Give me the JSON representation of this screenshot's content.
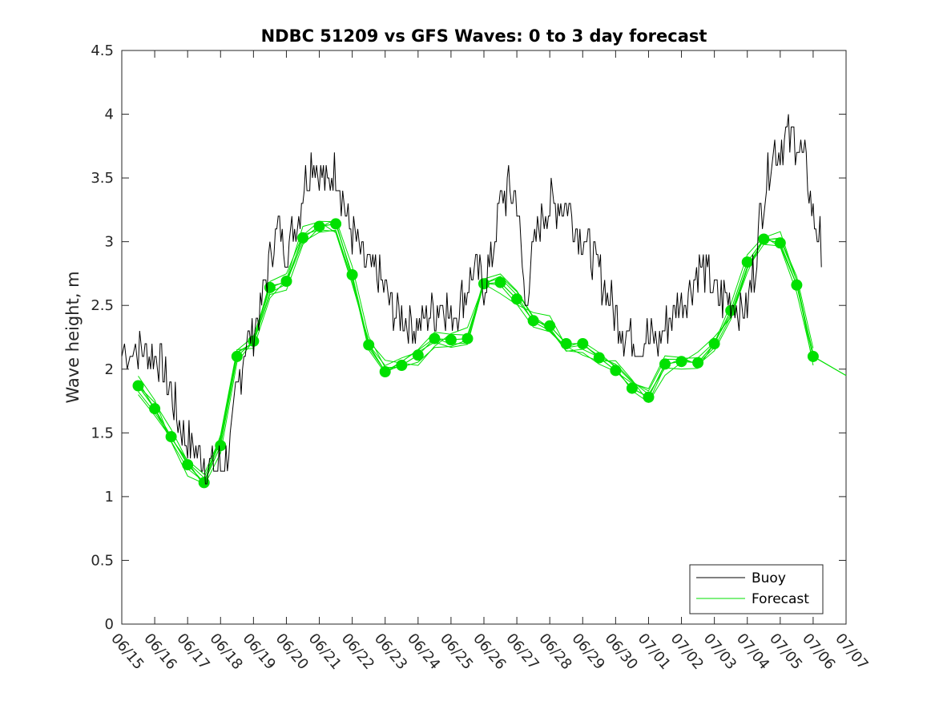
{
  "chart_data": {
    "type": "line",
    "title": "NDBC 51209 vs GFS Waves: 0 to 3 day forecast",
    "xlabel": "",
    "ylabel": "Wave height, m",
    "ylim": [
      0,
      4.5
    ],
    "yticks": [
      "0",
      "0.5",
      "1",
      "1.5",
      "2",
      "2.5",
      "3",
      "3.5",
      "4",
      "4.5"
    ],
    "xticks": [
      "06/15",
      "06/16",
      "06/17",
      "06/18",
      "06/19",
      "06/20",
      "06/21",
      "06/22",
      "06/23",
      "06/24",
      "06/25",
      "06/26",
      "06/27",
      "06/28",
      "06/29",
      "06/30",
      "07/01",
      "07/02",
      "07/03",
      "07/04",
      "07/05",
      "07/06",
      "07/07"
    ],
    "xlim_days": [
      0,
      22
    ],
    "legend": {
      "placement": "bottom-right",
      "entries": [
        "Buoy",
        "Forecast"
      ]
    },
    "colors": {
      "buoy": "#000000",
      "forecast": "#00e000",
      "axes": "#262626"
    },
    "series": [
      {
        "name": "Buoy",
        "x_days": [
          0,
          0.5,
          0.75,
          1,
          1.25,
          1.5,
          1.75,
          2,
          2.25,
          2.5,
          2.75,
          3,
          3.25,
          3.5,
          3.75,
          4,
          4.25,
          4.5,
          4.75,
          5,
          5.25,
          5.5,
          5.75,
          6,
          6.25,
          6.5,
          6.75,
          7,
          7.25,
          7.5,
          7.75,
          8,
          8.25,
          8.5,
          8.75,
          9,
          9.25,
          9.5,
          9.75,
          10,
          10.25,
          10.5,
          10.75,
          11,
          11.25,
          11.5,
          11.75,
          12,
          12.25,
          12.5,
          12.75,
          13,
          13.25,
          13.5,
          13.75,
          14,
          14.25,
          14.5,
          14.75,
          15,
          15.25,
          15.5,
          15.75,
          16,
          16.25,
          16.5,
          16.75,
          17,
          17.25,
          17.5,
          17.75,
          18,
          18.25,
          18.5,
          18.75,
          19,
          19.25,
          19.5,
          19.75,
          20,
          20.25,
          20.5,
          20.75,
          21,
          21.25
        ],
        "values": [
          2.15,
          2.15,
          2.15,
          2.1,
          2.0,
          1.8,
          1.6,
          1.45,
          1.35,
          1.3,
          1.25,
          1.25,
          1.35,
          1.8,
          2.2,
          2.3,
          2.5,
          2.9,
          3.1,
          2.95,
          3.1,
          3.4,
          3.65,
          3.55,
          3.45,
          3.55,
          3.3,
          3.05,
          2.9,
          2.8,
          2.75,
          2.6,
          2.45,
          2.4,
          2.35,
          2.35,
          2.4,
          2.45,
          2.55,
          2.4,
          2.5,
          2.65,
          2.8,
          2.65,
          2.9,
          3.3,
          3.4,
          3.35,
          2.5,
          2.95,
          3.2,
          3.3,
          3.3,
          3.3,
          3.15,
          3.05,
          2.9,
          2.75,
          2.6,
          2.4,
          2.3,
          2.25,
          2.2,
          2.25,
          2.2,
          2.3,
          2.45,
          2.55,
          2.65,
          2.8,
          2.75,
          2.6,
          2.55,
          2.55,
          2.45,
          2.5,
          2.85,
          3.4,
          3.7,
          3.75,
          3.8,
          3.8,
          3.6,
          3.2,
          3.0
        ]
      },
      {
        "name": "Forecast",
        "x_days": [
          0.5,
          1,
          1.5,
          2,
          2.5,
          3,
          3.5,
          4,
          4.5,
          5,
          5.5,
          6,
          6.5,
          7,
          7.5,
          8,
          8.5,
          9,
          9.5,
          10,
          10.5,
          11,
          11.5,
          12,
          12.5,
          13,
          13.5,
          14,
          14.5,
          15,
          15.5,
          16,
          16.5,
          17,
          17.5,
          18,
          18.5,
          19,
          19.5,
          20,
          20.5,
          21
        ],
        "values": [
          1.87,
          1.69,
          1.47,
          1.25,
          1.11,
          1.4,
          2.1,
          2.22,
          2.64,
          2.69,
          3.03,
          3.12,
          3.14,
          2.74,
          2.19,
          1.98,
          2.03,
          2.11,
          2.24,
          2.23,
          2.24,
          2.67,
          2.68,
          2.55,
          2.38,
          2.34,
          2.2,
          2.2,
          2.09,
          1.99,
          1.85,
          1.78,
          2.04,
          2.06,
          2.05,
          2.2,
          2.46,
          2.84,
          3.02,
          2.99,
          2.66,
          2.1
        ]
      }
    ]
  }
}
